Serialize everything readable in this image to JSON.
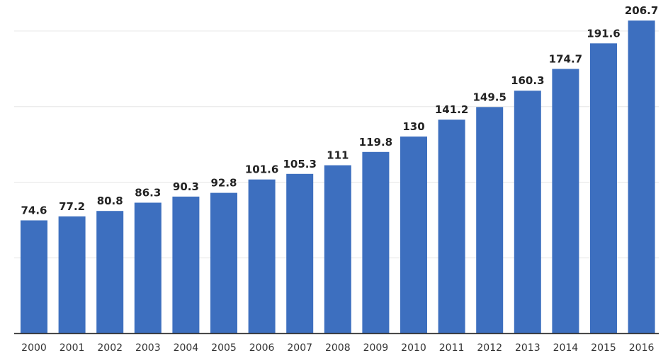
{
  "chart_data": {
    "type": "bar",
    "categories": [
      "2000",
      "2001",
      "2002",
      "2003",
      "2004",
      "2005",
      "2006",
      "2007",
      "2008",
      "2009",
      "2010",
      "2011",
      "2012",
      "2013",
      "2014",
      "2015",
      "2016"
    ],
    "values": [
      74.6,
      77.2,
      80.8,
      86.3,
      90.3,
      92.8,
      101.6,
      105.3,
      111,
      119.8,
      130,
      141.2,
      149.5,
      160.3,
      174.7,
      191.6,
      206.7
    ],
    "value_labels": [
      "74.6",
      "77.2",
      "80.8",
      "86.3",
      "90.3",
      "92.8",
      "101.6",
      "105.3",
      "111",
      "119.8",
      "130",
      "141.2",
      "149.5",
      "160.3",
      "174.7",
      "191.6",
      "206.7"
    ],
    "ylim": [
      0,
      250
    ],
    "gridlines": [
      50,
      100,
      150,
      200
    ],
    "grid": true,
    "legend": "none",
    "colors": {
      "bar": "#3d6fbf",
      "grid": "#e6e6e6",
      "axis": "#333333"
    }
  }
}
